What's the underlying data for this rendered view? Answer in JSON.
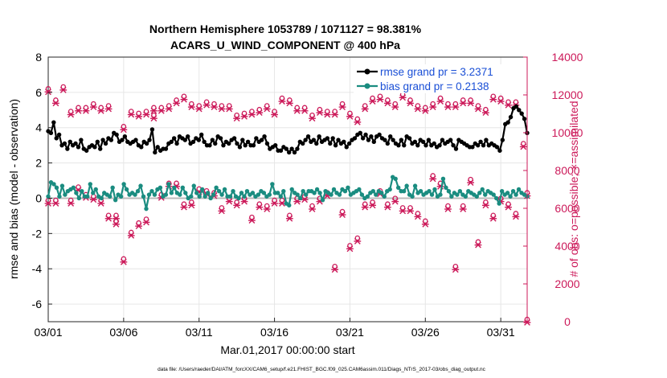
{
  "chart_data": {
    "type": "line",
    "title_line1": "Northern Hemisphere 1053789 / 1071127 = 98.381%",
    "title_line2": "ACARS_U_WIND_COMPONENT @ 400 hPa",
    "xlabel": "Mar.01,2017 00:00:00 start",
    "ylabel_left": "rmse and bias (model - observation)",
    "ylabel_right": "# of obs: o=possible; ×=assimilated",
    "footnote": "data file: /Users/raeder/DAI/ATM_forcXX/CAM6_setup/f.e21.FHIST_BGC.f09_025.CAM6assim.011/Diags_NTrS_2017-03/obs_diag_output.nc",
    "x_range": [
      0,
      31.75
    ],
    "ylim_left": [
      -7,
      8
    ],
    "ylim_right": [
      0,
      14000
    ],
    "x_ticks": [
      0,
      5,
      10,
      15,
      20,
      25,
      30
    ],
    "x_tick_labels": [
      "03/01",
      "03/06",
      "03/11",
      "03/16",
      "03/21",
      "03/26",
      "03/31"
    ],
    "y_left_ticks": [
      8,
      6,
      4,
      2,
      0,
      -2,
      -4,
      -6
    ],
    "y_left_tick_labels": [
      "8",
      "6",
      "4",
      "2",
      "0",
      "-2",
      "-4",
      "-6"
    ],
    "y_right_ticks": [
      14000,
      12000,
      10000,
      8000,
      6000,
      4000,
      2000,
      0
    ],
    "y_right_tick_labels": [
      "14000",
      "12000",
      "10000",
      "8000",
      "6000",
      "4000",
      "2000",
      "0"
    ],
    "colors": {
      "rmse": "#000000",
      "bias": "#1a8c80",
      "obs": "#cc1a5a",
      "zero_line": "#bbbbbb",
      "grid": "#e6e6e6",
      "legend_text": "#1a4fd6"
    },
    "series": [
      {
        "name": "rmse grand pr = 3.2371",
        "key": "rmse",
        "values": [
          3.8,
          3.7,
          4.3,
          3.4,
          3.6,
          3.0,
          3.1,
          2.8,
          3.2,
          3.0,
          3.1,
          2.9,
          3.3,
          2.8,
          2.7,
          2.9,
          3.0,
          2.9,
          3.2,
          2.8,
          3.3,
          3.1,
          3.4,
          3.3,
          3.7,
          3.6,
          3.2,
          3.3,
          3.5,
          3.2,
          3.1,
          3.2,
          3.3,
          3.0,
          2.9,
          3.2,
          3.1,
          3.3,
          3.9,
          2.6,
          2.9,
          2.7,
          2.8,
          2.8,
          3.1,
          3.2,
          3.4,
          3.1,
          3.5,
          3.4,
          3.3,
          3.5,
          3.1,
          3.2,
          3.4,
          3.3,
          3.6,
          3.2,
          3.0,
          3.0,
          3.3,
          3.1,
          3.5,
          3.4,
          3.0,
          3.2,
          3.1,
          3.3,
          3.4,
          3.1,
          2.9,
          3.3,
          3.0,
          3.2,
          3.0,
          3.0,
          3.4,
          3.2,
          3.3,
          3.5,
          3.1,
          2.8,
          2.9,
          3.0,
          2.7,
          2.7,
          2.9,
          2.8,
          2.6,
          2.8,
          2.6,
          2.8,
          3.2,
          3.1,
          3.3,
          3.5,
          3.2,
          3.3,
          3.1,
          3.5,
          3.2,
          3.3,
          3.4,
          3.1,
          3.4,
          3.0,
          3.3,
          3.1,
          3.2,
          2.9,
          3.1,
          3.3,
          3.4,
          3.6,
          3.7,
          3.4,
          3.6,
          3.3,
          3.5,
          3.2,
          3.5,
          3.6,
          3.4,
          3.3,
          3.1,
          3.5,
          3.3,
          3.1,
          3.0,
          3.3,
          3.0,
          3.5,
          3.4,
          3.1,
          3.2,
          3.0,
          3.3,
          3.2,
          3.0,
          3.3,
          3.0,
          3.1,
          2.9,
          3.0,
          3.3,
          3.1,
          3.2,
          3.3,
          3.0,
          2.8,
          3.3,
          3.2,
          3.1,
          3.0,
          2.9,
          2.9,
          3.1,
          3.0,
          3.2,
          3.0,
          3.3,
          3.0,
          3.1,
          3.0,
          2.9,
          2.7,
          3.3,
          4.2,
          4.3,
          4.6,
          5.1,
          5.2,
          5.0,
          4.8,
          4.5,
          3.7
        ]
      },
      {
        "name": "bias grand pr = 0.2138",
        "key": "bias",
        "values": [
          0.1,
          0.9,
          0.8,
          0.6,
          0.1,
          0.7,
          0.2,
          0.4,
          0.5,
          0.6,
          0.3,
          0.0,
          0.4,
          0.1,
          0.1,
          0.8,
          0.3,
          0.5,
          0.1,
          0.0,
          0.3,
          0.2,
          0.1,
          0.6,
          -0.1,
          0.2,
          0.1,
          0.8,
          0.5,
          0.2,
          0.3,
          0.2,
          0.4,
          0.7,
          0.1,
          -0.6,
          0.2,
          0.4,
          0.2,
          0.5,
          0.6,
          0.1,
          0.2,
          0.8,
          0.3,
          0.6,
          0.3,
          0.2,
          0.6,
          0.3,
          0.0,
          0.1,
          0.7,
          0.3,
          0.1,
          0.5,
          0.1,
          0.3,
          0.0,
          0.2,
          0.6,
          0.4,
          0.2,
          0.5,
          0.1,
          0.1,
          0.4,
          0.1,
          0.0,
          0.3,
          0.1,
          0.4,
          0.2,
          0.3,
          0.1,
          0.2,
          0.4,
          0.3,
          0.1,
          0.2,
          0.8,
          0.3,
          0.3,
          0.1,
          0.4,
          -0.3,
          -0.4,
          0.5,
          0.3,
          0.2,
          0.0,
          0.4,
          0.2,
          0.4,
          0.4,
          0.3,
          0.5,
          0.3,
          -0.1,
          0.4,
          0.3,
          0.2,
          0.5,
          0.3,
          0.2,
          0.5,
          0.4,
          0.6,
          0.2,
          0.3,
          0.4,
          0.5,
          0.2,
          0.0,
          0.1,
          0.3,
          0.4,
          0.2,
          0.4,
          0.3,
          0.1,
          0.4,
          0.5,
          1.2,
          1.1,
          0.6,
          0.4,
          0.4,
          0.7,
          0.2,
          0.1,
          0.7,
          0.3,
          0.4,
          0.2,
          0.3,
          0.4,
          0.2,
          0.5,
          0.1,
          0.2,
          1.1,
          0.6,
          0.4,
          0.1,
          0.3,
          0.2,
          0.4,
          0.2,
          0.1,
          0.4,
          0.3,
          0.2,
          0.1,
          0.3,
          0.5,
          0.2,
          0.4,
          0.3,
          0.2,
          0.0,
          -0.3,
          0.4,
          0.2,
          0.3,
          0.1,
          0.4,
          0.2,
          0.5,
          0.3,
          0.2,
          0.1
        ]
      }
    ],
    "obs_possible": [
      [
        0,
        12200
      ],
      [
        0.5,
        11600
      ],
      [
        1,
        12300
      ],
      [
        1.5,
        11000
      ],
      [
        2,
        11200
      ],
      [
        2.5,
        11200
      ],
      [
        3,
        11400
      ],
      [
        3.5,
        11200
      ],
      [
        4,
        11300
      ],
      [
        4.5,
        5500
      ],
      [
        5,
        10200
      ],
      [
        5.5,
        11000
      ],
      [
        6,
        10900
      ],
      [
        6.5,
        11000
      ],
      [
        7,
        11200
      ],
      [
        7.5,
        11200
      ],
      [
        8,
        11300
      ],
      [
        8.5,
        11600
      ],
      [
        9,
        11800
      ],
      [
        9.5,
        11400
      ],
      [
        10,
        11300
      ],
      [
        10.5,
        11500
      ],
      [
        11,
        11400
      ],
      [
        11.5,
        11300
      ],
      [
        12,
        11300
      ],
      [
        12.5,
        10800
      ],
      [
        13,
        10900
      ],
      [
        13.5,
        11000
      ],
      [
        14,
        11100
      ],
      [
        14.5,
        11300
      ],
      [
        15,
        11000
      ],
      [
        15.5,
        11700
      ],
      [
        16,
        11600
      ],
      [
        16.5,
        11200
      ],
      [
        17,
        11200
      ],
      [
        17.5,
        10800
      ],
      [
        18,
        11100
      ],
      [
        18.5,
        11000
      ],
      [
        19,
        11000
      ],
      [
        19.5,
        11400
      ],
      [
        20,
        10900
      ],
      [
        20.5,
        10600
      ],
      [
        21,
        11300
      ],
      [
        21.5,
        11700
      ],
      [
        22,
        11800
      ],
      [
        22.5,
        11600
      ],
      [
        23,
        11400
      ],
      [
        23.5,
        11900
      ],
      [
        24,
        11600
      ],
      [
        24.5,
        11300
      ],
      [
        25,
        11200
      ],
      [
        25.5,
        11400
      ],
      [
        26,
        11700
      ],
      [
        26.5,
        11400
      ],
      [
        27,
        11400
      ],
      [
        27.5,
        11600
      ],
      [
        28,
        11600
      ],
      [
        28.5,
        11300
      ],
      [
        29,
        11100
      ],
      [
        29.5,
        11800
      ],
      [
        30,
        11700
      ],
      [
        30.5,
        11500
      ],
      [
        31,
        11500
      ],
      [
        31.5,
        9300
      ],
      [
        31.75,
        6700
      ]
    ],
    "obs_possible_extra": [
      [
        0,
        6300
      ],
      [
        0.5,
        6300
      ],
      [
        1.5,
        6300
      ],
      [
        2,
        7000
      ],
      [
        2.5,
        6600
      ],
      [
        3,
        6500
      ],
      [
        3.5,
        6300
      ],
      [
        4,
        5500
      ],
      [
        4.5,
        5200
      ],
      [
        5,
        3200
      ],
      [
        5.5,
        4600
      ],
      [
        6,
        5100
      ],
      [
        6.5,
        5300
      ],
      [
        7,
        10800
      ],
      [
        7.5,
        6600
      ],
      [
        8,
        7200
      ],
      [
        8.5,
        7200
      ],
      [
        9,
        6100
      ],
      [
        9.5,
        6200
      ],
      [
        10,
        6900
      ],
      [
        10.5,
        6800
      ],
      [
        11,
        6700
      ],
      [
        11.5,
        5900
      ],
      [
        12,
        6400
      ],
      [
        12.5,
        6200
      ],
      [
        13,
        6400
      ],
      [
        13.5,
        5400
      ],
      [
        14,
        6100
      ],
      [
        14.5,
        6000
      ],
      [
        15,
        6300
      ],
      [
        15.5,
        6300
      ],
      [
        16,
        5500
      ],
      [
        16.5,
        6400
      ],
      [
        17,
        6500
      ],
      [
        17.5,
        6000
      ],
      [
        18,
        6400
      ],
      [
        18.5,
        6700
      ],
      [
        19,
        2800
      ],
      [
        19.5,
        5700
      ],
      [
        20,
        3900
      ],
      [
        20.5,
        4300
      ],
      [
        21,
        6100
      ],
      [
        21.5,
        6200
      ],
      [
        22,
        6800
      ],
      [
        22.5,
        6100
      ],
      [
        23,
        6400
      ],
      [
        23.5,
        5900
      ],
      [
        24,
        5900
      ],
      [
        24.5,
        5600
      ],
      [
        25,
        5200
      ],
      [
        25.5,
        7600
      ],
      [
        26,
        7200
      ],
      [
        26.5,
        6000
      ],
      [
        27,
        2800
      ],
      [
        27.5,
        6000
      ],
      [
        28,
        7400
      ],
      [
        28.5,
        4100
      ],
      [
        29,
        6200
      ],
      [
        29.5,
        5500
      ],
      [
        30,
        6400
      ],
      [
        30.5,
        6100
      ],
      [
        31,
        5600
      ],
      [
        31.75,
        0
      ]
    ]
  },
  "legend": {
    "rmse_label": "rmse grand pr = 3.2371",
    "bias_label": "bias grand pr = 0.2138"
  }
}
